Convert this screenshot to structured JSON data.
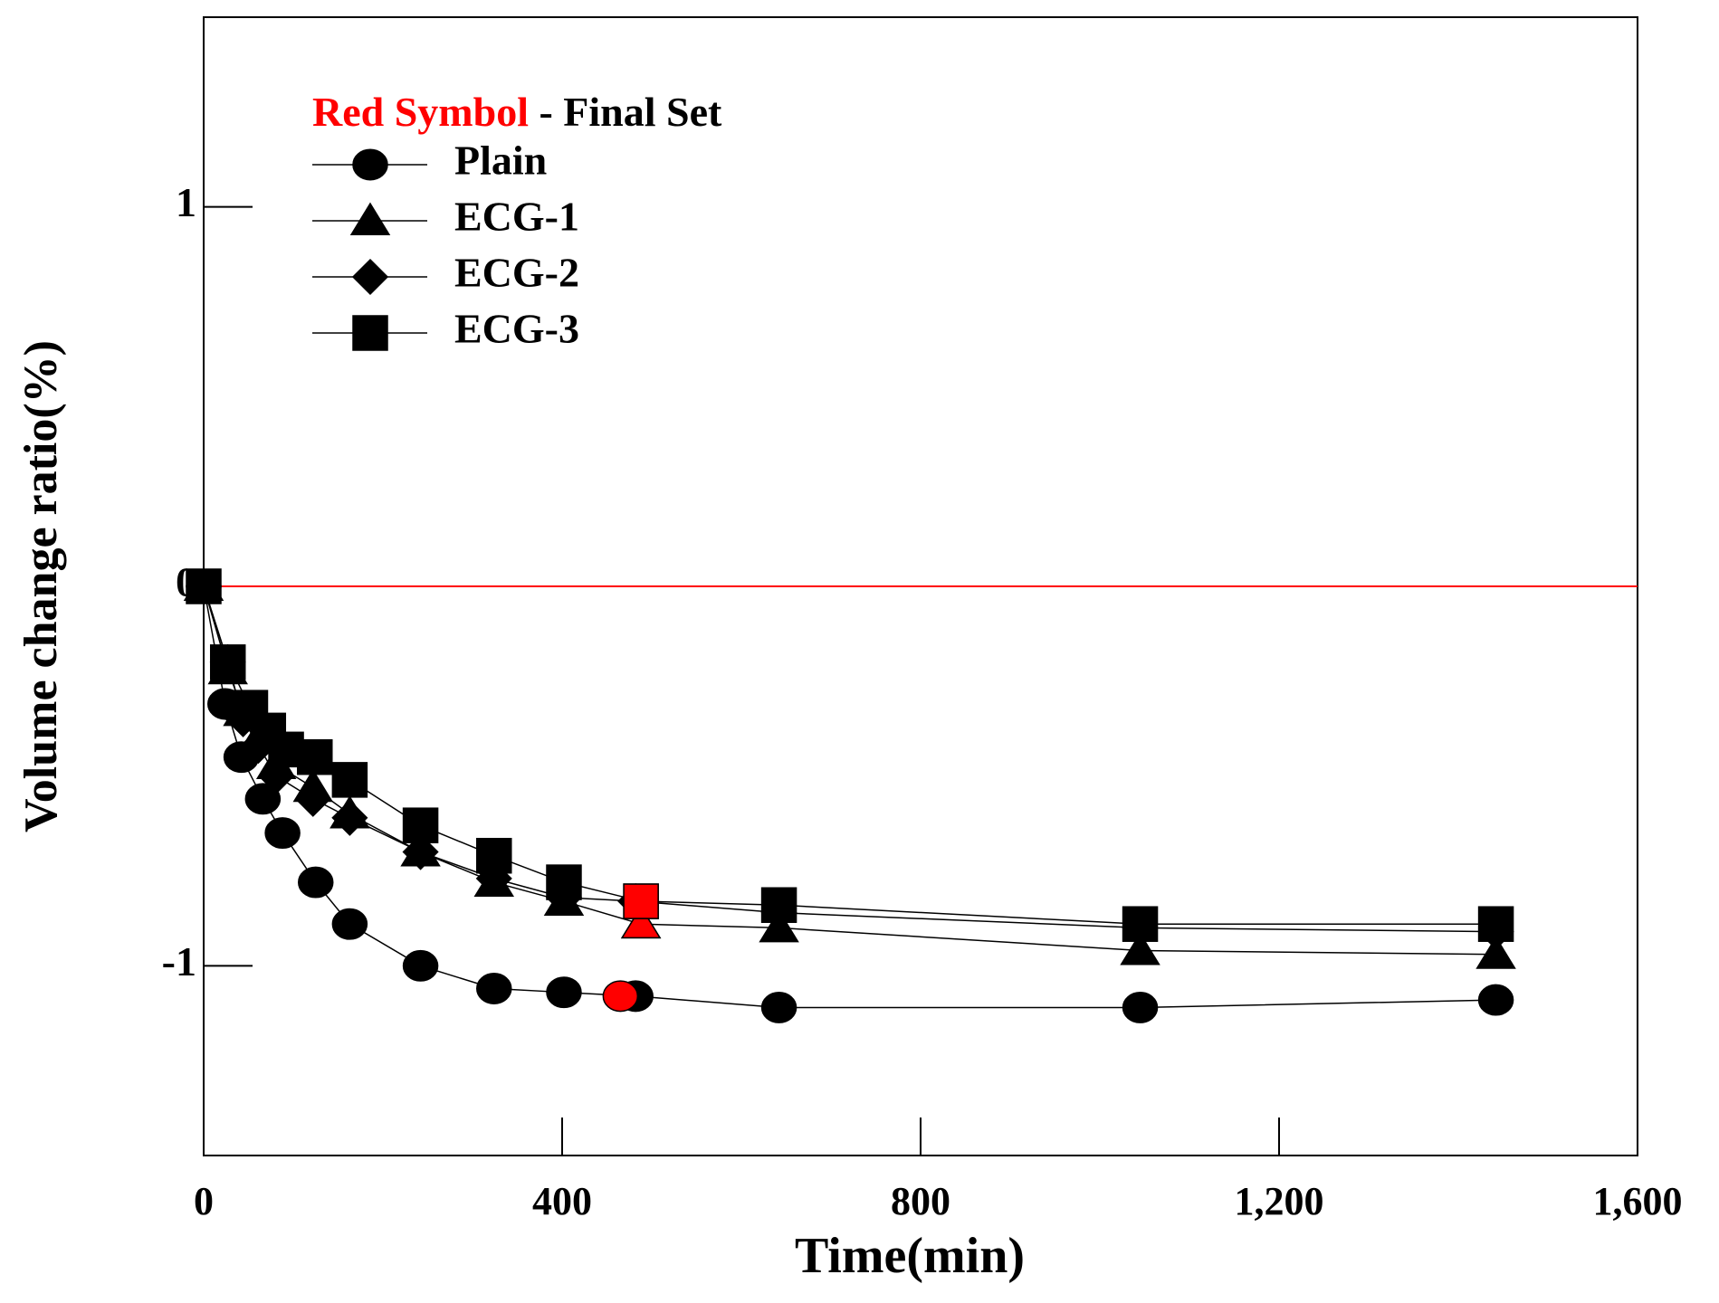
{
  "chart_data": {
    "type": "line",
    "xlabel": "Time(min)",
    "ylabel": "Volume change ratio(%)",
    "legend_title": "- Final Set",
    "final_set_label": "Red Symbol",
    "final_set_color": "#ff0000",
    "xlim": [
      0,
      1600
    ],
    "xticks": [
      0,
      400,
      800,
      {
        "value": 1200,
        "label": "1,200"
      },
      {
        "value": 1600,
        "label": "1,600"
      }
    ],
    "ylim": [
      -1.5,
      1.5
    ],
    "yticks": [
      -1,
      0,
      1
    ],
    "reference_line": {
      "y": 0,
      "color": "#ff0000"
    },
    "series": [
      {
        "name": "Plain",
        "marker": "circle",
        "color": "#000000",
        "x": [
          0,
          24,
          42,
          66,
          88,
          125,
          163,
          242,
          324,
          402,
          482,
          642,
          1045,
          1442
        ],
        "values": [
          0,
          -0.31,
          -0.45,
          -0.56,
          -0.65,
          -0.78,
          -0.89,
          -1.0,
          -1.06,
          -1.07,
          -1.08,
          -1.11,
          -1.11,
          -1.09
        ],
        "final_set": {
          "x": 465,
          "y": -1.08
        }
      },
      {
        "name": "ECG-1",
        "marker": "triangle",
        "color": "#000000",
        "x": [
          0,
          27,
          44,
          61,
          81,
          122,
          163,
          242,
          324,
          402,
          488,
          642,
          1045,
          1442
        ],
        "values": [
          0,
          -0.22,
          -0.33,
          -0.4,
          -0.47,
          -0.53,
          -0.6,
          -0.7,
          -0.78,
          -0.83,
          -0.89,
          -0.9,
          -0.96,
          -0.97
        ],
        "final_set": {
          "x": 488,
          "y": -0.89
        }
      },
      {
        "name": "ECG-2",
        "marker": "diamond",
        "color": "#000000",
        "x": [
          0,
          27,
          44,
          61,
          81,
          122,
          163,
          242,
          324,
          402,
          482,
          642,
          1045,
          1442
        ],
        "values": [
          0,
          -0.2,
          -0.35,
          -0.42,
          -0.5,
          -0.56,
          -0.61,
          -0.7,
          -0.77,
          -0.82,
          -0.83,
          -0.86,
          -0.9,
          -0.91
        ]
      },
      {
        "name": "ECG-3",
        "marker": "square",
        "color": "#000000",
        "x": [
          0,
          27,
          52,
          72,
          92,
          124,
          163,
          242,
          324,
          402,
          488,
          642,
          1045,
          1442
        ],
        "values": [
          0,
          -0.2,
          -0.32,
          -0.38,
          -0.43,
          -0.45,
          -0.51,
          -0.63,
          -0.71,
          -0.78,
          -0.83,
          -0.84,
          -0.89,
          -0.89
        ],
        "final_set": {
          "x": 488,
          "y": -0.83
        }
      }
    ]
  }
}
